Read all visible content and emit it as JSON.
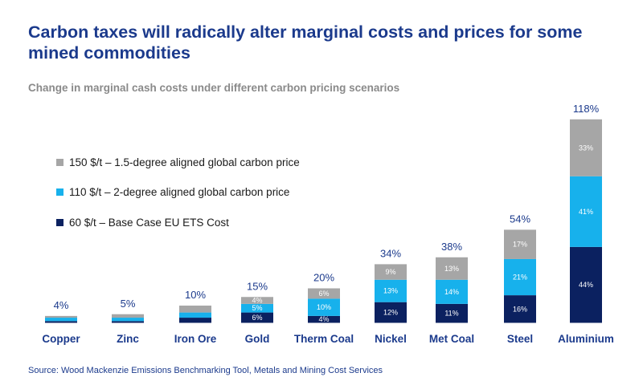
{
  "title": "Carbon taxes will radically alter marginal costs and prices for some mined commodities",
  "subtitle": "Change in marginal cash costs under different carbon pricing scenarios",
  "source": "Source: Wood Mackenzie Emissions Benchmarking Tool, Metals and Mining Cost Services",
  "colors": {
    "base": "#0b2160",
    "mid": "#17b1ec",
    "high": "#a6a6a6",
    "text": "#1b3a8c"
  },
  "chart_data": {
    "type": "bar",
    "stacked": true,
    "categories": [
      "Copper",
      "Zinc",
      "Iron Ore",
      "Gold",
      "Therm Coal",
      "Nickel",
      "Met Coal",
      "Steel",
      "Aluminium"
    ],
    "series": [
      {
        "name": "60 $/t – Base Case EU ETS Cost",
        "color": "#0b2160",
        "values": [
          1,
          1,
          3,
          6,
          4,
          12,
          11,
          16,
          44
        ],
        "labels": [
          "",
          "",
          "",
          "6%",
          "4%",
          "12%",
          "11%",
          "16%",
          "44%"
        ]
      },
      {
        "name": "110 $/t – 2-degree aligned global carbon price",
        "color": "#17b1ec",
        "values": [
          2,
          2,
          3,
          5,
          10,
          13,
          14,
          21,
          41
        ],
        "labels": [
          "",
          "",
          "",
          "5%",
          "10%",
          "13%",
          "14%",
          "21%",
          "41%"
        ]
      },
      {
        "name": "150 $/t – 1.5-degree aligned global carbon price",
        "color": "#a6a6a6",
        "values": [
          1,
          2,
          4,
          4,
          6,
          9,
          13,
          17,
          33
        ],
        "labels": [
          "",
          "",
          "",
          "4%",
          "6%",
          "9%",
          "13%",
          "17%",
          "33%"
        ]
      }
    ],
    "totals": [
      "4%",
      "5%",
      "10%",
      "15%",
      "20%",
      "34%",
      "38%",
      "54%",
      "118%"
    ],
    "legend_order": [
      2,
      1,
      0
    ],
    "legend_position": "left",
    "grid": false
  }
}
